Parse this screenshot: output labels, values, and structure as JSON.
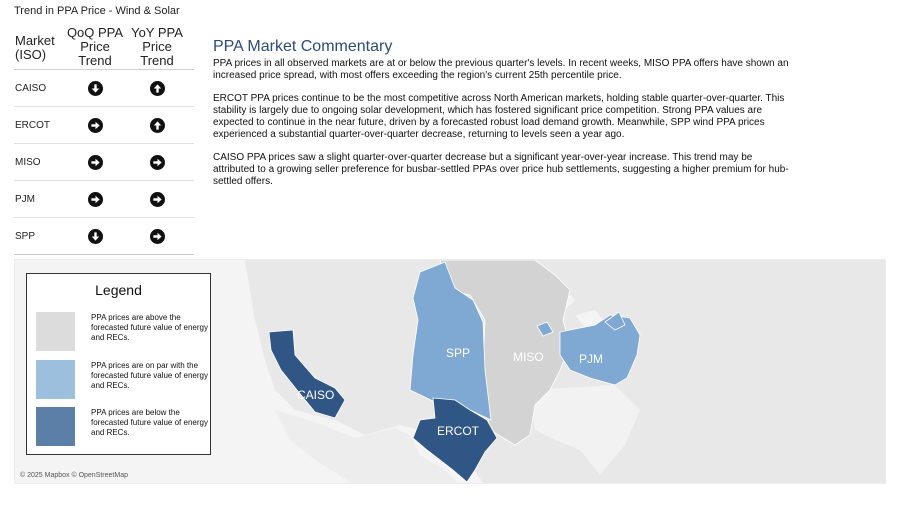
{
  "trend": {
    "title": "Trend in PPA Price - Wind & Solar",
    "headers": {
      "market": "Market (ISO)",
      "qoq": "QoQ PPA Price Trend",
      "yoy": "YoY PPA Price Trend"
    },
    "rows": [
      {
        "market": "CAISO",
        "qoq": "down",
        "yoy": "up"
      },
      {
        "market": "ERCOT",
        "qoq": "right",
        "yoy": "up"
      },
      {
        "market": "MISO",
        "qoq": "right",
        "yoy": "right"
      },
      {
        "market": "PJM",
        "qoq": "right",
        "yoy": "right"
      },
      {
        "market": "SPP",
        "qoq": "down",
        "yoy": "right"
      }
    ]
  },
  "commentary": {
    "title": "PPA Market Commentary",
    "p1": "PPA prices in all observed markets are at or below the previous quarter's levels. In recent weeks, MISO PPA offers have shown an increased price spread, with most offers exceeding the region's current 25th percentile price.",
    "p2": "ERCOT PPA prices continue to be the most competitive across North American markets, holding stable quarter-over-quarter. This stability is largely due to ongoing solar development, which has fostered significant price competition. Strong PPA values are expected to continue in the near future, driven by a forecasted robust load demand growth. Meanwhile, SPP wind PPA prices experienced a substantial quarter-over-quarter decrease, returning to levels seen a year ago.",
    "p3": "CAISO PPA prices saw a slight quarter-over-quarter decrease but a significant year-over-year increase. This trend may be attributed to a growing seller preference for busbar-settled PPAs over price hub settlements, suggesting a higher premium for hub-settled offers."
  },
  "legend": {
    "title": "Legend",
    "items": [
      {
        "text": "PPA prices are above the forecasted future value of energy and RECs.",
        "color": "#dcdcdc"
      },
      {
        "text": "PPA prices are on par with the forecasted future value of energy and RECs.",
        "color": "#9dbfde"
      },
      {
        "text": "PPA prices are below the forecasted future value of energy and RECs.",
        "color": "#5b7fa6"
      }
    ]
  },
  "map": {
    "attribution": "© 2025 Mapbox © OpenStreetMap",
    "colors": {
      "below": "#2f5685",
      "par": "#7fa9d2",
      "above": "#d3d3d3",
      "land": "#e9e9e9",
      "background": "#f4f4f4"
    },
    "regions": [
      {
        "name": "CAISO",
        "status": "below"
      },
      {
        "name": "ERCOT",
        "status": "below"
      },
      {
        "name": "SPP",
        "status": "par"
      },
      {
        "name": "PJM",
        "status": "par"
      },
      {
        "name": "MISO",
        "status": "above"
      }
    ]
  }
}
